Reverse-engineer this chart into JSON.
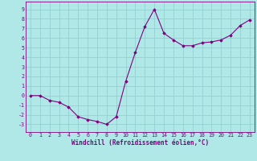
{
  "x": [
    0,
    1,
    2,
    3,
    4,
    5,
    6,
    7,
    8,
    9,
    10,
    11,
    12,
    13,
    14,
    15,
    16,
    17,
    18,
    19,
    20,
    21,
    22,
    23
  ],
  "y": [
    0.0,
    0.0,
    -0.5,
    -0.7,
    -1.2,
    -2.2,
    -2.5,
    -2.7,
    -3.0,
    -2.2,
    1.5,
    4.5,
    7.2,
    9.0,
    6.5,
    5.8,
    5.2,
    5.2,
    5.5,
    5.6,
    5.8,
    6.3,
    7.3,
    7.9
  ],
  "line_color": "#800080",
  "bg_color": "#b0e8e8",
  "grid_color": "#90cccc",
  "xlabel": "Windchill (Refroidissement éolien,°C)",
  "xlim": [
    -0.5,
    23.5
  ],
  "ylim": [
    -3.8,
    9.8
  ],
  "yticks": [
    9,
    8,
    7,
    6,
    5,
    4,
    3,
    2,
    1,
    0,
    -1,
    -2,
    -3
  ],
  "xticks": [
    0,
    1,
    2,
    3,
    4,
    5,
    6,
    7,
    8,
    9,
    10,
    11,
    12,
    13,
    14,
    15,
    16,
    17,
    18,
    19,
    20,
    21,
    22,
    23
  ],
  "tick_fontsize": 4.8,
  "xlabel_fontsize": 5.5,
  "marker": "D",
  "markersize": 1.8,
  "linewidth": 0.8
}
